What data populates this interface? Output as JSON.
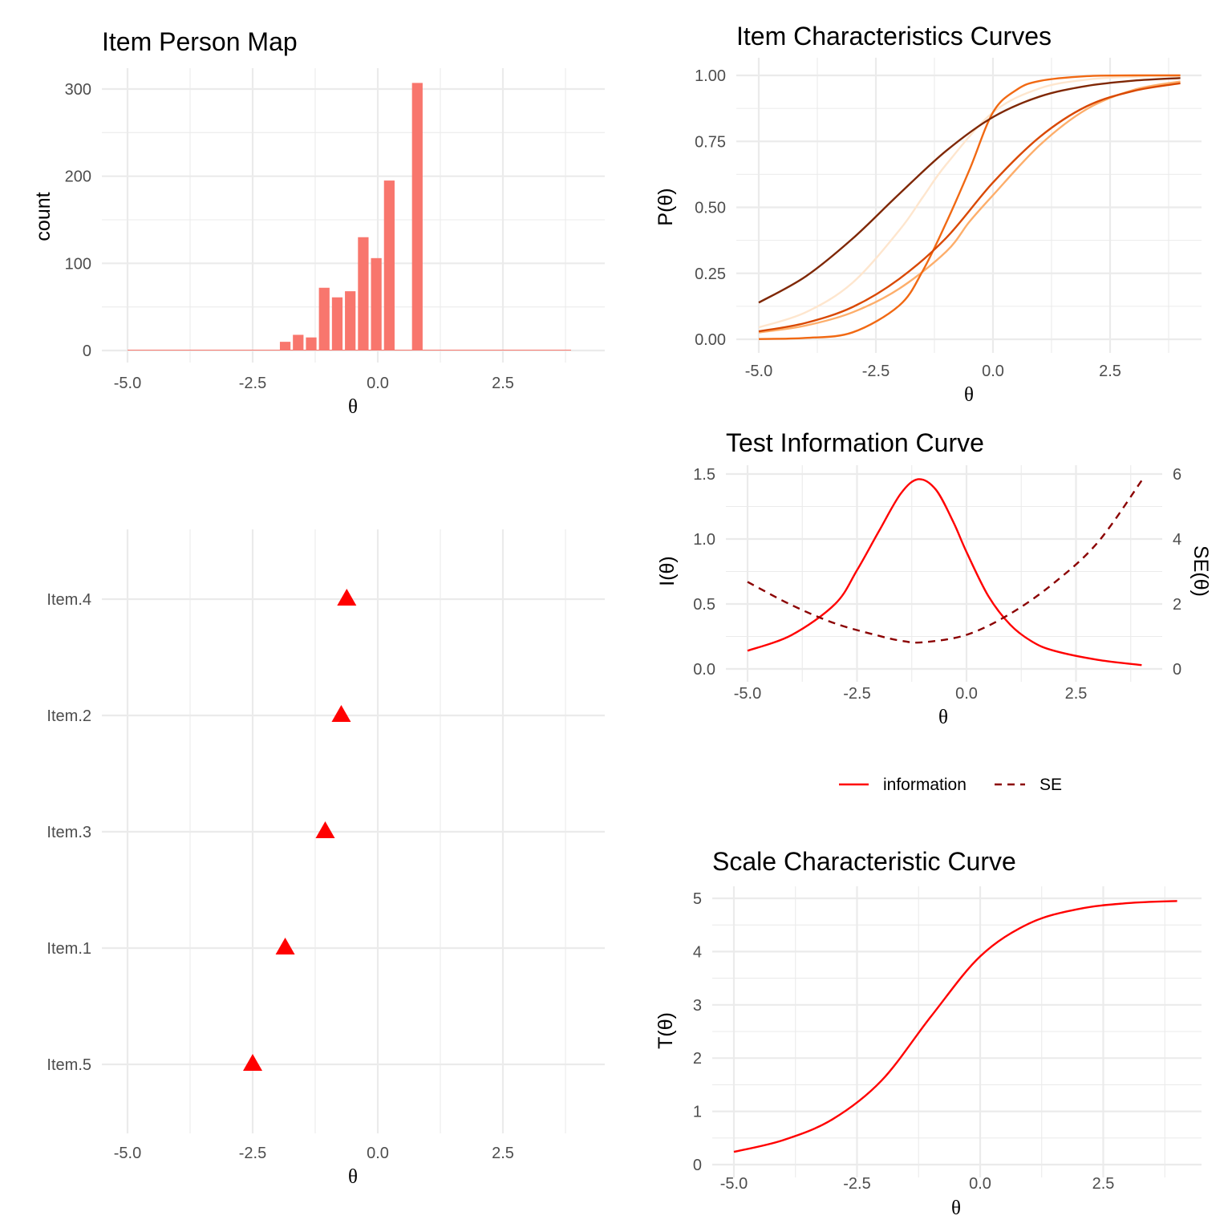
{
  "chart_data": [
    {
      "type": "bar",
      "title": "Item Person Map",
      "xlabel": "θ",
      "ylabel": "count",
      "xlim": [
        -5.0,
        4.0
      ],
      "ylim": [
        0,
        310
      ],
      "xticks": [
        "-5.0",
        "-2.5",
        "0.0",
        "2.5"
      ],
      "yticks": [
        "0",
        "100",
        "200",
        "300"
      ],
      "bar_color": "#f8766d",
      "bins": [
        {
          "x": -1.85,
          "count": 10
        },
        {
          "x": -1.59,
          "count": 18
        },
        {
          "x": -1.33,
          "count": 15
        },
        {
          "x": -1.07,
          "count": 72
        },
        {
          "x": -0.81,
          "count": 61
        },
        {
          "x": -0.55,
          "count": 68
        },
        {
          "x": -0.29,
          "count": 130
        },
        {
          "x": -0.03,
          "count": 106
        },
        {
          "x": 0.23,
          "count": 195
        },
        {
          "x": 0.79,
          "count": 307
        }
      ]
    },
    {
      "type": "line",
      "title": "Item Characteristics Curves",
      "xlabel": "θ",
      "ylabel": "P(θ)",
      "xlim": [
        -5.0,
        4.0
      ],
      "ylim": [
        0.0,
        1.0
      ],
      "xticks": [
        "-5.0",
        "-2.5",
        "0.0",
        "2.5"
      ],
      "yticks": [
        "0.00",
        "0.25",
        "0.50",
        "0.75",
        "1.00"
      ],
      "series": [
        {
          "values": [
            [
              -5.0,
              0.045
            ],
            [
              -4.0,
              0.102
            ],
            [
              -3.0,
              0.214
            ],
            [
              -2.0,
              0.413
            ],
            [
              -1.5,
              0.538
            ],
            [
              -1.0,
              0.662
            ],
            [
              0.0,
              0.86
            ],
            [
              1.0,
              0.951
            ],
            [
              2.0,
              0.984
            ],
            [
              3.0,
              0.995
            ],
            [
              4.0,
              0.998
            ]
          ],
          "color": "#fee6ce"
        },
        {
          "values": [
            [
              -5.0,
              0.026
            ],
            [
              -4.0,
              0.052
            ],
            [
              -3.0,
              0.102
            ],
            [
              -2.0,
              0.192
            ],
            [
              -1.0,
              0.332
            ],
            [
              -0.5,
              0.446
            ],
            [
              0.0,
              0.546
            ],
            [
              1.0,
              0.736
            ],
            [
              2.0,
              0.872
            ],
            [
              3.0,
              0.945
            ],
            [
              4.0,
              0.977
            ]
          ],
          "color": "#fdae6b"
        },
        {
          "values": [
            [
              -5.0,
              0.001
            ],
            [
              -4.0,
              0.005
            ],
            [
              -3.0,
              0.026
            ],
            [
              -2.0,
              0.128
            ],
            [
              -1.5,
              0.259
            ],
            [
              -1.0,
              0.441
            ],
            [
              -0.5,
              0.643
            ],
            [
              0.0,
              0.86
            ],
            [
              0.5,
              0.945
            ],
            [
              1.0,
              0.979
            ],
            [
              2.0,
              0.997
            ],
            [
              3.0,
              1.0
            ],
            [
              4.0,
              1.0
            ]
          ],
          "color": "#f16913"
        },
        {
          "values": [
            [
              -5.0,
              0.03
            ],
            [
              -4.0,
              0.062
            ],
            [
              -3.0,
              0.122
            ],
            [
              -2.0,
              0.229
            ],
            [
              -1.0,
              0.384
            ],
            [
              0.0,
              0.594
            ],
            [
              1.0,
              0.767
            ],
            [
              2.0,
              0.883
            ],
            [
              3.0,
              0.941
            ],
            [
              4.0,
              0.97
            ]
          ],
          "color": "#d94801"
        },
        {
          "values": [
            [
              -5.0,
              0.139
            ],
            [
              -4.0,
              0.238
            ],
            [
              -3.0,
              0.381
            ],
            [
              -2.0,
              0.551
            ],
            [
              -1.0,
              0.714
            ],
            [
              0.0,
              0.842
            ],
            [
              1.0,
              0.92
            ],
            [
              2.0,
              0.96
            ],
            [
              3.0,
              0.98
            ],
            [
              4.0,
              0.99
            ]
          ],
          "color": "#7f2704"
        }
      ]
    },
    {
      "type": "scatter",
      "title": "",
      "xlabel": "θ",
      "ylabel": "",
      "xlim": [
        -5.0,
        4.0
      ],
      "xticks": [
        "-5.0",
        "-2.5",
        "0.0",
        "2.5"
      ],
      "categories": [
        "Item.5",
        "Item.1",
        "Item.3",
        "Item.2",
        "Item.4"
      ],
      "values": [
        -2.5,
        -1.85,
        -1.05,
        -0.73,
        -0.62
      ],
      "marker": "triangle",
      "color": "#ff0000"
    },
    {
      "type": "line",
      "title": "Test Information Curve",
      "xlabel": "θ",
      "ylabel": "I(θ)",
      "y2label": "SE(θ)",
      "xlim": [
        -5.0,
        4.0
      ],
      "ylim": [
        0.0,
        1.5
      ],
      "y2lim": [
        0,
        6
      ],
      "xticks": [
        "-5.0",
        "-2.5",
        "0.0",
        "2.5"
      ],
      "yticks": [
        "0.0",
        "0.5",
        "1.0",
        "1.5"
      ],
      "y2ticks": [
        "0",
        "2",
        "4",
        "6"
      ],
      "legend_position": "bottom",
      "series": [
        {
          "name": "information",
          "axis": "left",
          "style": "solid",
          "color": "#ff0000",
          "values": [
            [
              -5.0,
              0.14
            ],
            [
              -4.0,
              0.26
            ],
            [
              -3.0,
              0.5
            ],
            [
              -2.5,
              0.76
            ],
            [
              -2.0,
              1.06
            ],
            [
              -1.5,
              1.35
            ],
            [
              -1.1,
              1.46
            ],
            [
              -0.7,
              1.38
            ],
            [
              -0.3,
              1.13
            ],
            [
              0.0,
              0.9
            ],
            [
              0.5,
              0.56
            ],
            [
              1.0,
              0.34
            ],
            [
              1.5,
              0.21
            ],
            [
              2.0,
              0.14
            ],
            [
              3.0,
              0.07
            ],
            [
              4.0,
              0.03
            ]
          ]
        },
        {
          "name": "SE",
          "axis": "right",
          "style": "dashed",
          "color": "#8b0000",
          "values": [
            [
              -5.0,
              2.68
            ],
            [
              -4.0,
              1.97
            ],
            [
              -3.0,
              1.4
            ],
            [
              -2.0,
              1.02
            ],
            [
              -1.5,
              0.87
            ],
            [
              -1.0,
              0.82
            ],
            [
              0.0,
              1.05
            ],
            [
              1.0,
              1.7
            ],
            [
              2.0,
              2.65
            ],
            [
              3.0,
              3.9
            ],
            [
              4.0,
              5.8
            ]
          ]
        }
      ],
      "legend": [
        "information",
        "SE"
      ]
    },
    {
      "type": "line",
      "title": "Scale Characteristic Curve",
      "xlabel": "θ",
      "ylabel": "T(θ)",
      "xlim": [
        -5.0,
        4.0
      ],
      "ylim": [
        0,
        5
      ],
      "xticks": [
        "-5.0",
        "-2.5",
        "0.0",
        "2.5"
      ],
      "yticks": [
        "0",
        "1",
        "2",
        "3",
        "4",
        "5"
      ],
      "series": [
        {
          "color": "#ff0000",
          "values": [
            [
              -5.0,
              0.24
            ],
            [
              -4.0,
              0.46
            ],
            [
              -3.0,
              0.85
            ],
            [
              -2.0,
              1.58
            ],
            [
              -1.0,
              2.78
            ],
            [
              0.0,
              3.91
            ],
            [
              1.0,
              4.53
            ],
            [
              2.0,
              4.8
            ],
            [
              3.0,
              4.91
            ],
            [
              4.0,
              4.95
            ]
          ]
        }
      ]
    }
  ]
}
